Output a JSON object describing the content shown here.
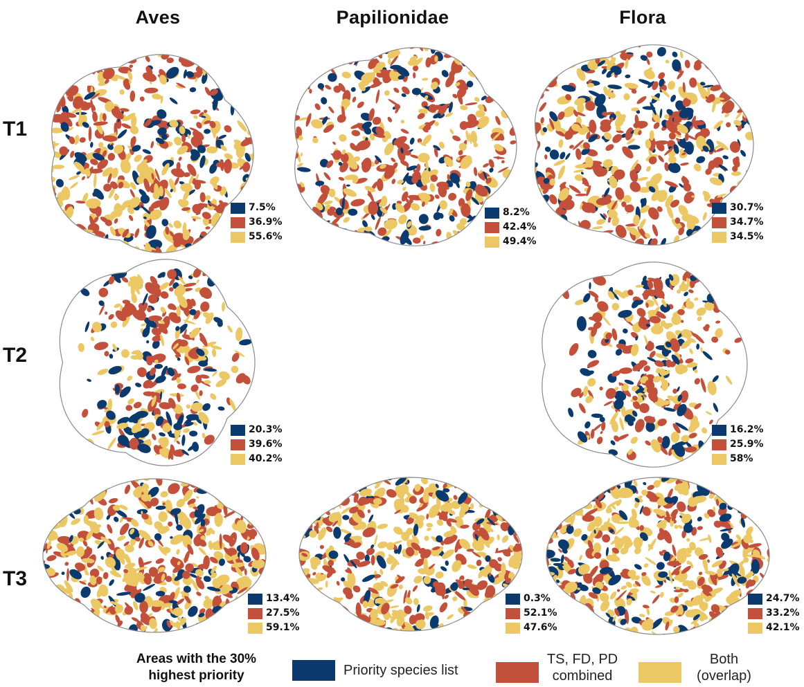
{
  "columns": [
    "Aves",
    "Papilionidae",
    "Flora"
  ],
  "rows": [
    "T1",
    "T2",
    "T3"
  ],
  "colors": {
    "priority": "#0b3a6e",
    "combined": "#c2503a",
    "both": "#ecc865"
  },
  "panels": {
    "aves_t1": {
      "priority": "7.5%",
      "combined": "36.9%",
      "both": "55.6%"
    },
    "pap_t1": {
      "priority": "8.2%",
      "combined": "42.4%",
      "both": "49.4%"
    },
    "flora_t1": {
      "priority": "30.7%",
      "combined": "34.7%",
      "both": "34.5%"
    },
    "aves_t2": {
      "priority": "20.3%",
      "combined": "39.6%",
      "both": "40.2%"
    },
    "flora_t2": {
      "priority": "16.2%",
      "combined": "25.9%",
      "both": "58%"
    },
    "aves_t3": {
      "priority": "13.4%",
      "combined": "27.5%",
      "both": "59.1%"
    },
    "pap_t3": {
      "priority": "0.3%",
      "combined": "52.1%",
      "both": "47.6%"
    },
    "flora_t3": {
      "priority": "24.7%",
      "combined": "33.2%",
      "both": "42.1%"
    }
  },
  "legend": {
    "title": "Areas with the 30% highest priority",
    "priority_label": "Priority species list",
    "combined_label": "TS, FD, PD combined",
    "both_label": "Both (overlap)"
  }
}
